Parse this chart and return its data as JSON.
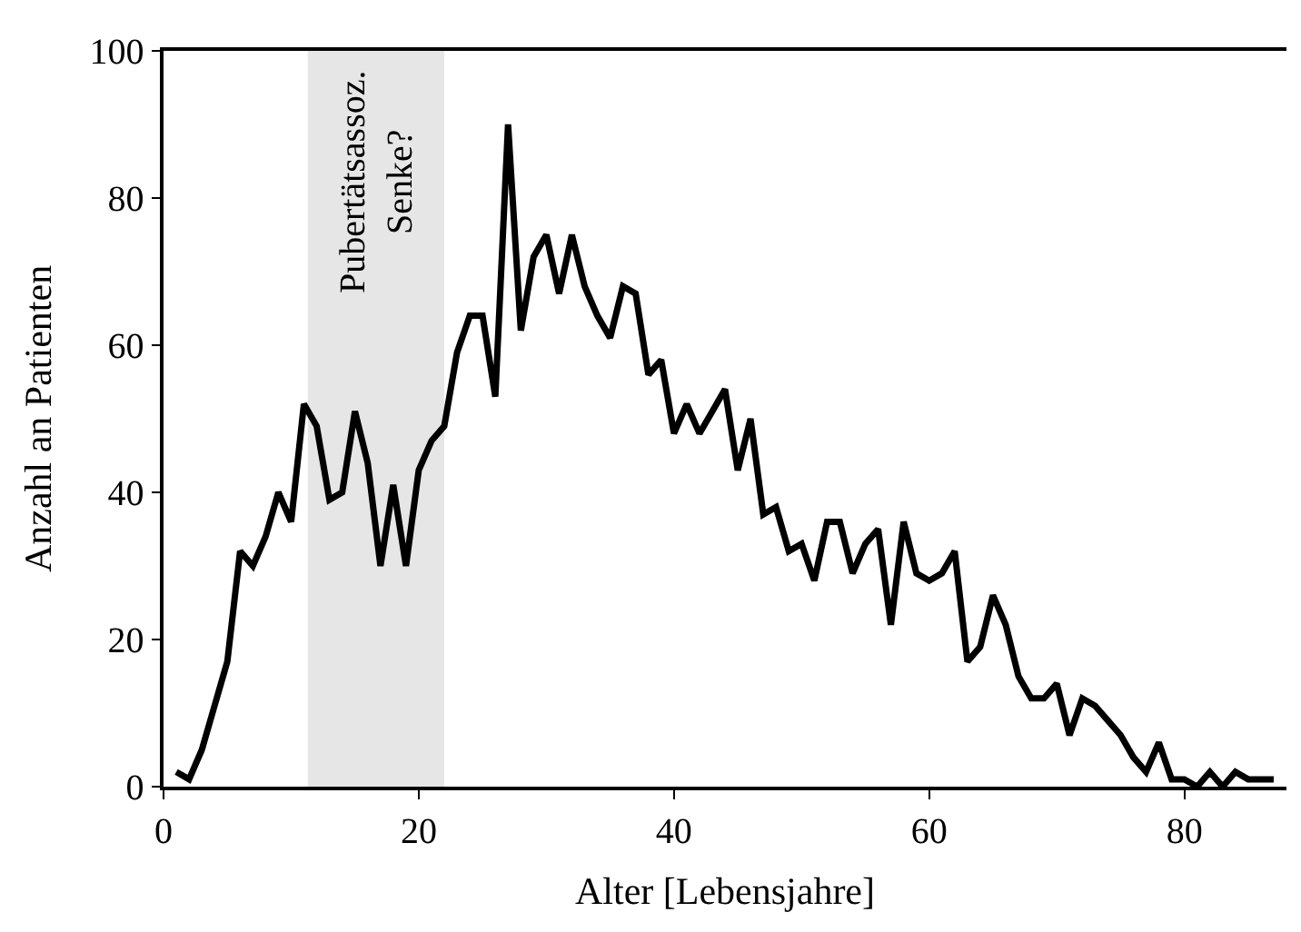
{
  "chart_data": {
    "type": "line",
    "xlabel": "Alter [Lebensjahre]",
    "ylabel": "Anzahl an Patienten",
    "x": [
      1,
      2,
      3,
      4,
      5,
      6,
      7,
      8,
      9,
      10,
      11,
      12,
      13,
      14,
      15,
      16,
      17,
      18,
      19,
      20,
      21,
      22,
      23,
      24,
      25,
      26,
      27,
      28,
      29,
      30,
      31,
      32,
      33,
      34,
      35,
      36,
      37,
      38,
      39,
      40,
      41,
      42,
      43,
      44,
      45,
      46,
      47,
      48,
      49,
      50,
      51,
      52,
      53,
      54,
      55,
      56,
      57,
      58,
      59,
      60,
      61,
      62,
      63,
      64,
      65,
      66,
      67,
      68,
      69,
      70,
      71,
      72,
      73,
      74,
      75,
      76,
      77,
      78,
      79,
      80,
      81,
      82,
      83,
      84,
      85,
      86,
      87
    ],
    "series": [
      {
        "color": "#000000",
        "values": [
          2,
          1,
          5,
          11,
          17,
          32,
          30,
          34,
          40,
          36,
          52,
          49,
          39,
          40,
          51,
          44,
          30,
          41,
          30,
          43,
          47,
          49,
          59,
          64,
          64,
          53,
          90,
          62,
          72,
          75,
          67,
          75,
          68,
          64,
          61,
          68,
          67,
          56,
          58,
          48,
          52,
          48,
          51,
          54,
          43,
          50,
          37,
          38,
          32,
          33,
          28,
          36,
          36,
          29,
          33,
          35,
          22,
          36,
          29,
          28,
          29,
          32,
          17,
          19,
          26,
          22,
          15,
          12,
          12,
          14,
          7,
          12,
          11,
          9,
          7,
          4,
          2,
          6,
          1,
          1,
          0,
          2,
          0,
          2,
          1,
          1,
          1
        ]
      }
    ],
    "xlim": [
      0,
      88
    ],
    "ylim": [
      0,
      100
    ],
    "xticks": [
      0,
      20,
      40,
      60,
      80
    ],
    "yticks": [
      0,
      20,
      40,
      60,
      80,
      100
    ],
    "bands": [
      {
        "axis": "x",
        "from": 11.3,
        "to": 22,
        "color": "#e6e6e6",
        "label": "Pubertätsassoz.\nSenke?"
      }
    ],
    "grid": false,
    "marker": "none",
    "line_style": "solid"
  }
}
